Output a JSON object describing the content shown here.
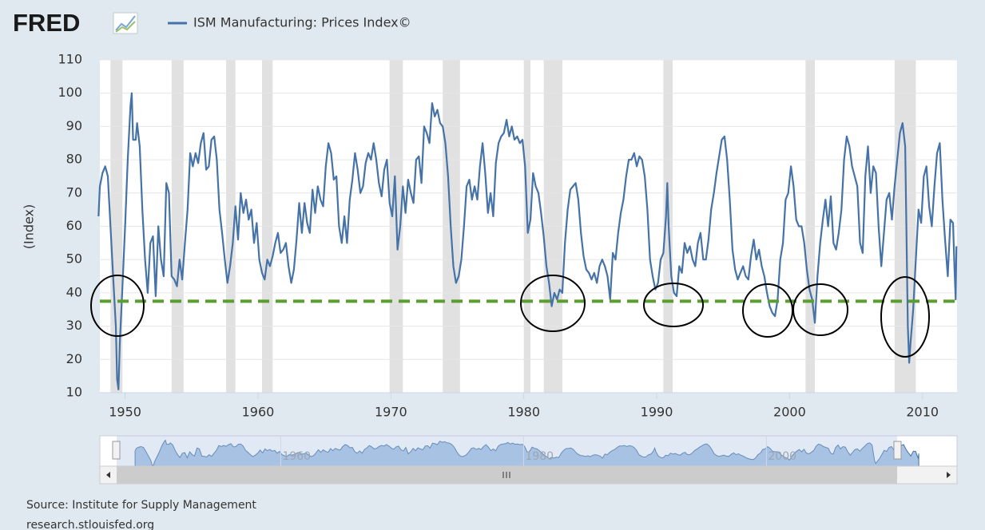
{
  "logo": "FRED",
  "chart_data": {
    "type": "line",
    "legend_name_note": null,
    "y_label": "(Index)",
    "source": "Source: Institute for Supply Management",
    "site": "research.stlouisfed.org",
    "x": [
      1948.0,
      1948.1,
      1948.3,
      1948.5,
      1948.7,
      1948.9,
      1949.1,
      1949.3,
      1949.4,
      1949.5,
      1949.6,
      1949.8,
      1950.0,
      1950.2,
      1950.4,
      1950.5,
      1950.6,
      1950.8,
      1950.9,
      1951.1,
      1951.3,
      1951.5,
      1951.7,
      1951.9,
      1952.1,
      1952.3,
      1952.5,
      1952.7,
      1952.9,
      1953.1,
      1953.3,
      1953.5,
      1953.7,
      1953.9,
      1954.1,
      1954.3,
      1954.5,
      1954.7,
      1954.9,
      1955.1,
      1955.3,
      1955.5,
      1955.7,
      1955.9,
      1956.1,
      1956.3,
      1956.5,
      1956.7,
      1956.9,
      1957.1,
      1957.3,
      1957.5,
      1957.7,
      1957.9,
      1958.1,
      1958.3,
      1958.5,
      1958.7,
      1958.9,
      1959.1,
      1959.3,
      1959.5,
      1959.7,
      1959.9,
      1960.1,
      1960.3,
      1960.5,
      1960.7,
      1960.9,
      1961.1,
      1961.3,
      1961.5,
      1961.7,
      1961.9,
      1962.1,
      1962.3,
      1962.5,
      1962.7,
      1962.9,
      1963.1,
      1963.3,
      1963.5,
      1963.7,
      1963.9,
      1964.1,
      1964.3,
      1964.5,
      1964.7,
      1964.9,
      1965.1,
      1965.3,
      1965.5,
      1965.7,
      1965.9,
      1966.1,
      1966.3,
      1966.5,
      1966.7,
      1966.9,
      1967.1,
      1967.3,
      1967.5,
      1967.7,
      1967.9,
      1968.1,
      1968.3,
      1968.5,
      1968.7,
      1968.9,
      1969.1,
      1969.3,
      1969.5,
      1969.7,
      1969.9,
      1970.1,
      1970.3,
      1970.5,
      1970.7,
      1970.9,
      1971.1,
      1971.3,
      1971.5,
      1971.7,
      1971.9,
      1972.1,
      1972.3,
      1972.5,
      1972.7,
      1972.9,
      1973.1,
      1973.3,
      1973.5,
      1973.7,
      1973.9,
      1974.1,
      1974.3,
      1974.5,
      1974.7,
      1974.9,
      1975.1,
      1975.3,
      1975.5,
      1975.7,
      1975.9,
      1976.1,
      1976.3,
      1976.5,
      1976.7,
      1976.9,
      1977.1,
      1977.3,
      1977.5,
      1977.7,
      1977.9,
      1978.1,
      1978.3,
      1978.5,
      1978.7,
      1978.9,
      1979.1,
      1979.3,
      1979.5,
      1979.7,
      1979.9,
      1980.1,
      1980.3,
      1980.5,
      1980.7,
      1980.9,
      1981.1,
      1981.3,
      1981.5,
      1981.7,
      1981.9,
      1982.1,
      1982.3,
      1982.5,
      1982.7,
      1982.9,
      1983.1,
      1983.3,
      1983.5,
      1983.7,
      1983.9,
      1984.1,
      1984.3,
      1984.5,
      1984.7,
      1984.9,
      1985.1,
      1985.3,
      1985.5,
      1985.7,
      1985.9,
      1986.1,
      1986.3,
      1986.5,
      1986.7,
      1986.9,
      1987.1,
      1987.3,
      1987.5,
      1987.7,
      1987.9,
      1988.1,
      1988.3,
      1988.5,
      1988.7,
      1988.9,
      1989.1,
      1989.3,
      1989.5,
      1989.7,
      1989.9,
      1990.1,
      1990.3,
      1990.5,
      1990.7,
      1990.8,
      1990.9,
      1991.1,
      1991.3,
      1991.5,
      1991.7,
      1991.9,
      1992.1,
      1992.3,
      1992.5,
      1992.7,
      1992.9,
      1993.1,
      1993.3,
      1993.5,
      1993.7,
      1993.9,
      1994.1,
      1994.3,
      1994.5,
      1994.7,
      1994.9,
      1995.1,
      1995.3,
      1995.5,
      1995.7,
      1995.9,
      1996.1,
      1996.3,
      1996.5,
      1996.7,
      1996.9,
      1997.1,
      1997.3,
      1997.5,
      1997.7,
      1997.9,
      1998.1,
      1998.3,
      1998.5,
      1998.7,
      1998.9,
      1999.1,
      1999.3,
      1999.5,
      1999.7,
      1999.9,
      2000.1,
      2000.3,
      2000.5,
      2000.7,
      2000.9,
      2001.1,
      2001.3,
      2001.5,
      2001.7,
      2001.9,
      2002.1,
      2002.3,
      2002.5,
      2002.7,
      2002.9,
      2003.1,
      2003.3,
      2003.5,
      2003.7,
      2003.9,
      2004.1,
      2004.3,
      2004.5,
      2004.7,
      2004.9,
      2005.1,
      2005.3,
      2005.5,
      2005.7,
      2005.9,
      2006.1,
      2006.3,
      2006.5,
      2006.7,
      2006.9,
      2007.1,
      2007.3,
      2007.5,
      2007.7,
      2007.9,
      2008.1,
      2008.3,
      2008.5,
      2008.7,
      2008.9,
      2009.0,
      2009.1,
      2009.3,
      2009.5,
      2009.7,
      2009.9,
      2010.1,
      2010.3,
      2010.5,
      2010.7,
      2010.9,
      2011.1,
      2011.3,
      2011.5,
      2011.7,
      2011.9,
      2012.1,
      2012.3,
      2012.4,
      2012.5,
      2012.55
    ],
    "series": [
      {
        "name": "ISM Manufacturing: Prices Index©",
        "color": "#4572a7",
        "values": [
          63,
          72,
          76,
          78,
          75,
          60,
          45,
          30,
          14,
          11,
          25,
          42,
          60,
          80,
          96,
          100,
          86,
          86,
          91,
          84,
          65,
          50,
          40,
          55,
          57,
          39,
          60,
          50,
          45,
          73,
          70,
          45,
          44,
          42,
          50,
          44,
          55,
          65,
          82,
          78,
          82,
          79,
          85,
          88,
          77,
          78,
          86,
          87,
          80,
          65,
          58,
          50,
          43,
          48,
          55,
          66,
          56,
          70,
          64,
          68,
          62,
          65,
          55,
          61,
          50,
          46,
          44,
          50,
          48,
          51,
          55,
          58,
          52,
          53,
          55,
          48,
          43,
          47,
          56,
          67,
          58,
          67,
          61,
          58,
          71,
          64,
          72,
          68,
          66,
          78,
          85,
          82,
          74,
          75,
          60,
          55,
          63,
          55,
          68,
          74,
          82,
          77,
          70,
          72,
          79,
          82,
          80,
          85,
          80,
          73,
          69,
          77,
          80,
          67,
          63,
          75,
          53,
          60,
          72,
          64,
          74,
          70,
          67,
          80,
          81,
          73,
          90,
          88,
          85,
          97,
          93,
          95,
          91,
          90,
          85,
          75,
          60,
          48,
          43,
          45,
          50,
          60,
          72,
          74,
          68,
          72,
          68,
          78,
          85,
          76,
          64,
          70,
          63,
          79,
          85,
          87,
          88,
          92,
          87,
          90,
          86,
          87,
          85,
          86,
          78,
          58,
          62,
          76,
          72,
          70,
          64,
          57,
          48,
          43,
          36,
          40,
          38,
          41,
          40,
          55,
          65,
          71,
          72,
          73,
          68,
          58,
          51,
          47,
          46,
          44,
          46,
          43,
          48,
          50,
          48,
          45,
          38,
          52,
          50,
          58,
          64,
          68,
          75,
          80,
          80,
          82,
          78,
          81,
          80,
          75,
          65,
          50,
          45,
          41,
          43,
          50,
          52,
          63,
          73,
          60,
          45,
          40,
          39,
          48,
          46,
          55,
          52,
          54,
          50,
          48,
          55,
          58,
          50,
          50,
          56,
          65,
          70,
          76,
          81,
          86,
          87,
          80,
          68,
          53,
          47,
          44,
          46,
          48,
          45,
          44,
          51,
          56,
          50,
          53,
          48,
          45,
          40,
          36,
          34,
          33,
          38,
          50,
          55,
          68,
          70,
          78,
          72,
          62,
          60,
          60,
          55,
          47,
          41,
          38,
          31,
          45,
          55,
          62,
          68,
          60,
          69,
          55,
          53,
          58,
          65,
          80,
          87,
          84,
          78,
          75,
          72,
          55,
          52,
          75,
          84,
          70,
          78,
          76,
          60,
          48,
          58,
          68,
          70,
          62,
          72,
          80,
          88,
          91,
          84,
          30,
          19,
          25,
          35,
          50,
          65,
          61,
          75,
          78,
          66,
          60,
          72,
          82,
          85,
          68,
          56,
          45,
          62,
          61,
          48,
          38,
          54
        ]
      }
    ],
    "xlim": [
      1948.1,
      2012.6
    ],
    "ylim": [
      10,
      110
    ],
    "xticks": [
      1950,
      1960,
      1970,
      1980,
      1990,
      2000,
      2010
    ],
    "yticks": [
      10,
      20,
      30,
      40,
      50,
      60,
      70,
      80,
      90,
      100,
      110
    ],
    "grid": true,
    "recessions": [
      [
        1948.9,
        1949.8
      ],
      [
        1953.5,
        1954.4
      ],
      [
        1957.6,
        1958.3
      ],
      [
        1960.3,
        1961.1
      ],
      [
        1969.9,
        1970.9
      ],
      [
        1973.9,
        1975.2
      ],
      [
        1980.0,
        1980.5
      ],
      [
        1981.5,
        1982.9
      ],
      [
        1990.5,
        1991.2
      ],
      [
        2001.2,
        2001.9
      ],
      [
        2007.9,
        2009.5
      ]
    ],
    "recession_color": "#e1e1e1",
    "reference_line": {
      "value": 37.5,
      "color": "#5a9e2f"
    },
    "navigator_xlim": [
      1945.1,
      2015.7
    ],
    "navigator_xticks": [
      1960,
      1980,
      2000
    ]
  }
}
